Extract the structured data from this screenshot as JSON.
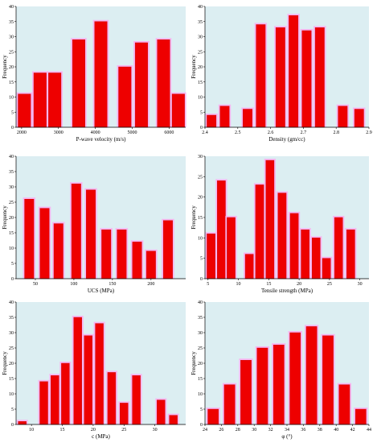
{
  "colors": {
    "plot_bg": "#dceef2",
    "bar_fill": "#ee0000",
    "bar_glow": "#f7b6f1",
    "bar_stroke": "#c80000",
    "axis": "#000000"
  },
  "chart_data": [
    {
      "type": "bar",
      "title": "",
      "xlabel": "P-wave velocity (m/s)",
      "ylabel": "Frequency",
      "xlim": [
        1850,
        6450
      ],
      "ylim": [
        0,
        40
      ],
      "yticks": [
        0,
        5,
        10,
        15,
        20,
        25,
        30,
        35,
        40
      ],
      "xticks": [
        2000,
        3000,
        4000,
        5000,
        6000
      ],
      "bar_width": 340,
      "x": [
        2075,
        2500,
        2900,
        3550,
        4150,
        4800,
        5250,
        5850,
        6250
      ],
      "values": [
        11,
        18,
        18,
        29,
        35,
        20,
        28,
        29,
        11
      ]
    },
    {
      "type": "bar",
      "title": "",
      "xlabel": "Density (gm/cc)",
      "ylabel": "Frequency",
      "xlim": [
        2.4,
        2.9
      ],
      "ylim": [
        0,
        40
      ],
      "yticks": [
        0,
        5,
        10,
        15,
        20,
        25,
        30,
        35,
        40
      ],
      "xticks": [
        2.4,
        2.5,
        2.6,
        2.7,
        2.8,
        2.9
      ],
      "bar_width": 0.028,
      "x": [
        2.42,
        2.46,
        2.53,
        2.57,
        2.63,
        2.67,
        2.71,
        2.75,
        2.82,
        2.87
      ],
      "values": [
        4,
        7,
        6,
        34,
        33,
        37,
        32,
        33,
        7,
        6
      ]
    },
    {
      "type": "bar",
      "title": "",
      "xlabel": "UCS (MPa)",
      "ylabel": "Frequency",
      "xlim": [
        25,
        245
      ],
      "ylim": [
        0,
        40
      ],
      "yticks": [
        0,
        5,
        10,
        15,
        20,
        25,
        30,
        35,
        40
      ],
      "xticks": [
        50,
        100,
        150,
        200
      ],
      "bar_width": 12,
      "x": [
        42,
        62,
        80,
        103,
        122,
        142,
        162,
        182,
        200,
        222
      ],
      "values": [
        26,
        23,
        18,
        31,
        29,
        16,
        16,
        12,
        9,
        19
      ]
    },
    {
      "type": "bar",
      "title": "",
      "xlabel": "Tensile strength (MPa)",
      "ylabel": "Frequency",
      "xlim": [
        4.5,
        31.5
      ],
      "ylim": [
        0,
        30
      ],
      "yticks": [
        0,
        5,
        10,
        15,
        20,
        25,
        30
      ],
      "xticks": [
        5,
        10,
        15,
        20,
        25,
        30
      ],
      "bar_width": 1.35,
      "x": [
        5.5,
        7.2,
        8.8,
        11.8,
        13.5,
        15.2,
        17.2,
        19.2,
        21.0,
        22.8,
        24.5,
        26.5,
        28.5
      ],
      "values": [
        11,
        24,
        15,
        6,
        23,
        29,
        21,
        16,
        12,
        10,
        5,
        15,
        12
      ]
    },
    {
      "type": "bar",
      "title": "",
      "xlabel": "c (MPa)",
      "ylabel": "Frequency",
      "xlim": [
        7.5,
        35
      ],
      "ylim": [
        0,
        40
      ],
      "yticks": [
        0,
        5,
        10,
        15,
        20,
        25,
        30,
        35,
        40
      ],
      "xticks": [
        10,
        15,
        20,
        25,
        30
      ],
      "bar_width": 1.3,
      "x": [
        8.5,
        12.0,
        13.8,
        15.5,
        17.5,
        19.2,
        21.0,
        23.0,
        25.0,
        27.0,
        31.0,
        33.0
      ],
      "values": [
        1,
        14,
        16,
        20,
        35,
        29,
        33,
        17,
        7,
        16,
        8,
        3
      ]
    },
    {
      "type": "bar",
      "title": "",
      "xlabel": "φ (°)",
      "ylabel": "Frequency",
      "xlim": [
        24,
        44
      ],
      "ylim": [
        0,
        40
      ],
      "yticks": [
        0,
        5,
        10,
        15,
        20,
        25,
        30,
        35,
        40
      ],
      "xticks": [
        24,
        26,
        28,
        30,
        32,
        34,
        36,
        38,
        40,
        42,
        44
      ],
      "bar_width": 1.3,
      "x": [
        25,
        27,
        29,
        31,
        33,
        35,
        37,
        39,
        41,
        43
      ],
      "values": [
        5,
        13,
        21,
        25,
        26,
        30,
        32,
        29,
        13,
        5
      ]
    }
  ]
}
